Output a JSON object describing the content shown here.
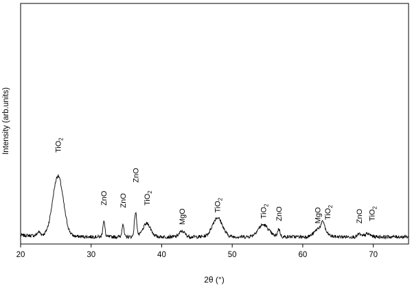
{
  "chart_data": {
    "type": "line",
    "title": "",
    "xlabel": "2θ (°)",
    "ylabel": "Intensity (arb.units)",
    "xlim": [
      20,
      75
    ],
    "ylim": [
      0,
      100
    ],
    "x_ticks": [
      20,
      30,
      40,
      50,
      60,
      70
    ],
    "y_ticks_shown": false,
    "grid": false,
    "legend": "none",
    "line_color": "#000000",
    "baseline": 3,
    "peaks": [
      {
        "x": 22.6,
        "height": 1.5,
        "width": 0.25
      },
      {
        "x": 25.3,
        "height": 25,
        "width": 0.75
      },
      {
        "x": 31.8,
        "height": 6.5,
        "width": 0.15
      },
      {
        "x": 34.5,
        "height": 5.5,
        "width": 0.13
      },
      {
        "x": 36.3,
        "height": 10,
        "width": 0.17
      },
      {
        "x": 37.9,
        "height": 5.5,
        "width": 0.55
      },
      {
        "x": 42.9,
        "height": 2.3,
        "width": 0.4
      },
      {
        "x": 47.9,
        "height": 8,
        "width": 0.7
      },
      {
        "x": 54.4,
        "height": 5,
        "width": 0.75
      },
      {
        "x": 56.6,
        "height": 3.2,
        "width": 0.18
      },
      {
        "x": 62.5,
        "height": 4,
        "width": 0.7
      },
      {
        "x": 62.9,
        "height": 3,
        "width": 0.2
      },
      {
        "x": 68.0,
        "height": 1.2,
        "width": 0.2
      },
      {
        "x": 69.2,
        "height": 1.2,
        "width": 0.4
      }
    ],
    "annotations": [
      {
        "x": 25.3,
        "y": 38,
        "text": "TiO",
        "sub": "2"
      },
      {
        "x": 31.8,
        "y": 16,
        "text": "ZnO",
        "sub": ""
      },
      {
        "x": 34.5,
        "y": 15,
        "text": "ZnO",
        "sub": ""
      },
      {
        "x": 36.3,
        "y": 25.5,
        "text": "ZnO",
        "sub": ""
      },
      {
        "x": 37.9,
        "y": 16,
        "text": "TiO",
        "sub": "2"
      },
      {
        "x": 42.9,
        "y": 8,
        "text": "MgO",
        "sub": ""
      },
      {
        "x": 47.9,
        "y": 13,
        "text": "TiO",
        "sub": "2"
      },
      {
        "x": 54.4,
        "y": 10.5,
        "text": "TiO",
        "sub": "2"
      },
      {
        "x": 56.6,
        "y": 9.5,
        "text": "ZnO",
        "sub": ""
      },
      {
        "x": 62.1,
        "y": 8.5,
        "text": "MgO",
        "sub": ""
      },
      {
        "x": 63.5,
        "y": 10,
        "text": "TiO",
        "sub": "2"
      },
      {
        "x": 68.0,
        "y": 8.5,
        "text": "ZnO",
        "sub": ""
      },
      {
        "x": 69.8,
        "y": 9.5,
        "text": "TiO",
        "sub": "2"
      }
    ]
  }
}
